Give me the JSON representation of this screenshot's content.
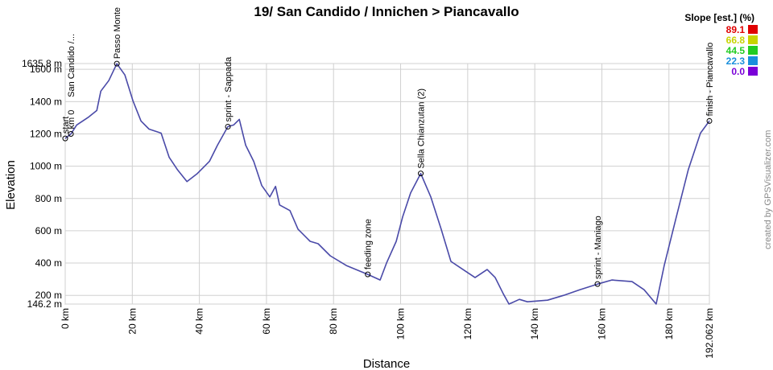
{
  "chart_data": {
    "type": "line",
    "title": "19/ San Candido / Innichen > Piancavallo",
    "x_label": "Distance",
    "y_label": "Elevation",
    "credit": "created by GPSVisualizer.com",
    "start_label": "San Candido /...",
    "xlim": [
      0,
      192.062
    ],
    "ylim": [
      146.2,
      1635.8
    ],
    "xticks": [
      {
        "value": 0,
        "label": "0 km"
      },
      {
        "value": 20,
        "label": "20 km"
      },
      {
        "value": 40,
        "label": "40 km"
      },
      {
        "value": 60,
        "label": "60 km"
      },
      {
        "value": 80,
        "label": "80 km"
      },
      {
        "value": 100,
        "label": "100 km"
      },
      {
        "value": 120,
        "label": "120 km"
      },
      {
        "value": 140,
        "label": "140 km"
      },
      {
        "value": 160,
        "label": "160 km"
      },
      {
        "value": 180,
        "label": "180 km"
      },
      {
        "value": 192.062,
        "label": "192.062 km"
      }
    ],
    "yticks": [
      {
        "value": 146.2,
        "label": "146.2 m"
      },
      {
        "value": 200,
        "label": "200 m"
      },
      {
        "value": 400,
        "label": "400 m"
      },
      {
        "value": 600,
        "label": "600 m"
      },
      {
        "value": 800,
        "label": "800 m"
      },
      {
        "value": 1000,
        "label": "1000 m"
      },
      {
        "value": 1200,
        "label": "1200 m"
      },
      {
        "value": 1400,
        "label": "1400 m"
      },
      {
        "value": 1600,
        "label": "1600 m"
      },
      {
        "value": 1635.8,
        "label": "1635.8 m"
      }
    ],
    "grid": true,
    "series": [
      {
        "color": "#4a4aa8",
        "x": [
          0,
          1.7,
          3.4,
          7.0,
          9.4,
          10.6,
          13,
          15.4,
          17.8,
          20.2,
          22.6,
          25,
          28.6,
          31,
          33.4,
          36.3,
          39.4,
          43,
          45.4,
          48.5,
          50.2,
          51.9,
          53.8,
          56.2,
          58.6,
          61,
          62.7,
          63.9,
          67,
          69.4,
          73,
          75.4,
          79,
          83.8,
          90.2,
          93.9,
          95.8,
          98.7,
          100.6,
          103,
          106,
          109,
          112.1,
          115,
          118.6,
          122.2,
          125.8,
          128.2,
          130.6,
          132.3,
          135.4,
          137.8,
          143.8,
          148.6,
          153.4,
          158.7,
          163,
          169,
          172.6,
          176.2,
          178.6,
          182.2,
          185.8,
          189.4,
          192.062
        ],
        "y": [
          1172,
          1200,
          1255,
          1305,
          1345,
          1465,
          1530,
          1635,
          1565,
          1405,
          1280,
          1230,
          1205,
          1055,
          980,
          905,
          955,
          1030,
          1130,
          1245,
          1255,
          1290,
          1130,
          1030,
          880,
          810,
          875,
          760,
          725,
          610,
          535,
          520,
          445,
          385,
          330,
          295,
          400,
          535,
          685,
          835,
          955,
          810,
          610,
          410,
          360,
          310,
          360,
          310,
          210,
          146.2,
          175,
          160,
          170,
          200,
          235,
          270,
          295,
          285,
          235,
          146.2,
          385,
          685,
          980,
          1205,
          1280
        ]
      }
    ],
    "waypoints": [
      {
        "name": "start",
        "x": 0,
        "y": 1172
      },
      {
        "name": "km 0",
        "x": 1.7,
        "y": 1200
      },
      {
        "name": "Passo Monte",
        "x": 15.4,
        "y": 1635
      },
      {
        "name": "sprint - Sappada",
        "x": 48.5,
        "y": 1245
      },
      {
        "name": "feeding zone",
        "x": 90.2,
        "y": 330
      },
      {
        "name": "Sella Chianzutan (2)",
        "x": 106,
        "y": 955
      },
      {
        "name": "sprint - Maniago",
        "x": 158.7,
        "y": 270
      },
      {
        "name": "finish - Piancavallo",
        "x": 192.062,
        "y": 1280
      }
    ],
    "slope_legend": {
      "title": "Slope [est.] (%)",
      "items": [
        {
          "label": "89.1",
          "color": "#e00000"
        },
        {
          "label": "66.8",
          "color": "#c8d400"
        },
        {
          "label": "44.5",
          "color": "#22cc22"
        },
        {
          "label": "22.3",
          "color": "#1a8fdc"
        },
        {
          "label": "0.0",
          "color": "#7a00d8"
        }
      ]
    }
  }
}
